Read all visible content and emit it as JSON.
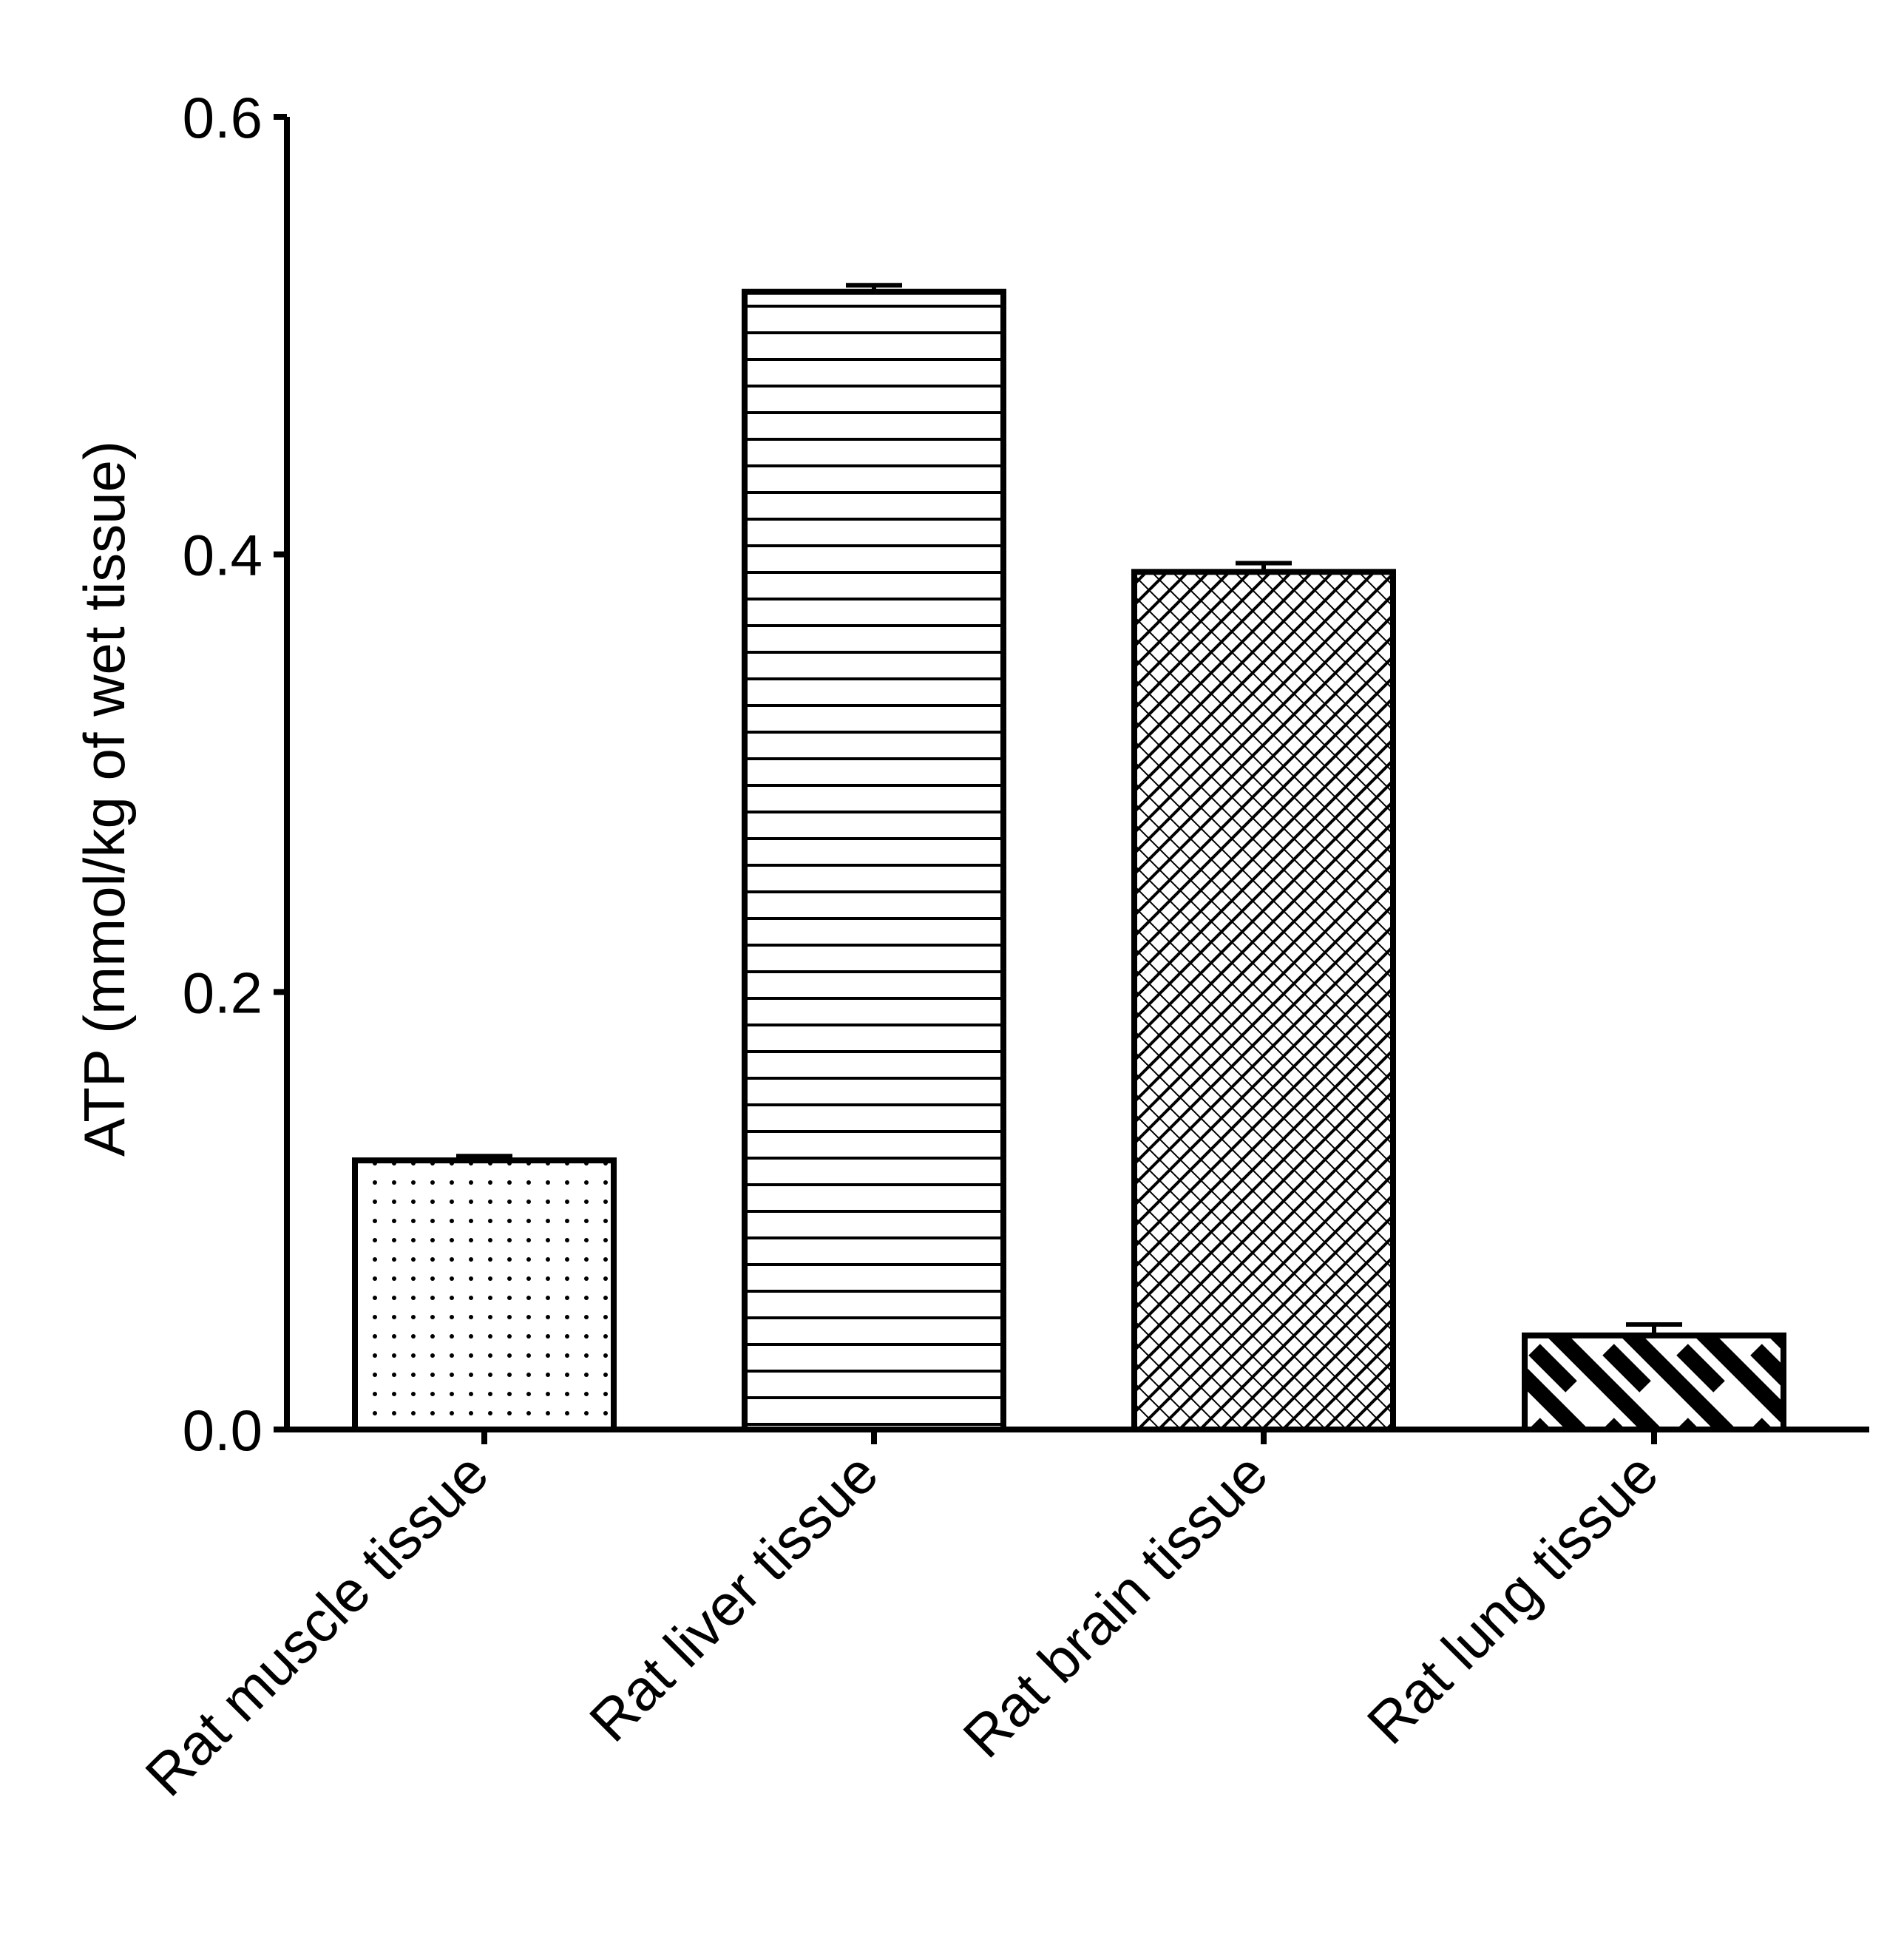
{
  "chart_data": {
    "type": "bar",
    "title": "",
    "xlabel": "",
    "ylabel": "ATP (mmol/kg of wet tissue)",
    "ylim": [
      0,
      0.6
    ],
    "yticks": [
      "0.0",
      "0.2",
      "0.4",
      "0.6"
    ],
    "grid": false,
    "categories": [
      "Rat muscle tissue",
      "Rat liver tissue",
      "Rat brain tissue",
      "Rat lung tissue"
    ],
    "values": [
      0.123,
      0.52,
      0.392,
      0.043
    ],
    "error": [
      0.002,
      0.003,
      0.004,
      0.005
    ],
    "patterns": [
      "dots",
      "horizontal-lines",
      "crosshatch",
      "diagonal-stripes"
    ],
    "colors": {
      "ink": "#000000",
      "background": "#ffffff"
    }
  }
}
